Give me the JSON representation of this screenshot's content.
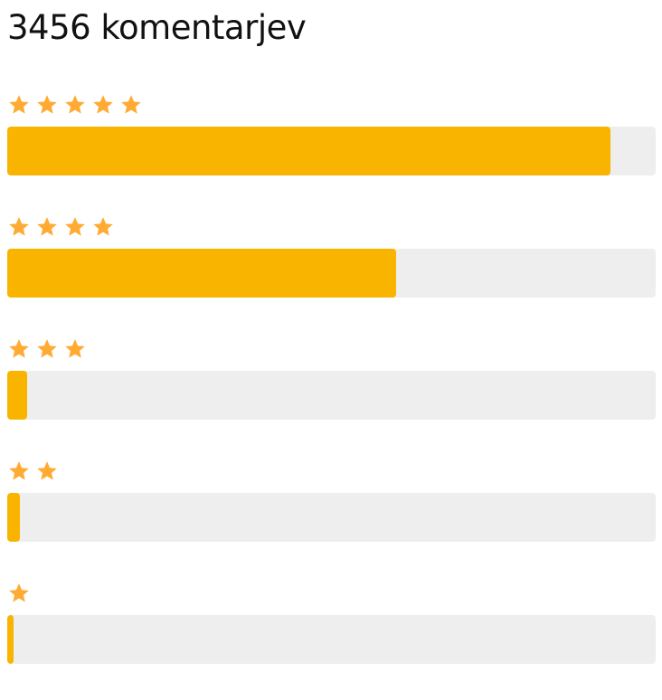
{
  "header": {
    "title": "3456 komentarjev"
  },
  "colors": {
    "star": "#FFAB33",
    "bar_fill": "#F9B400",
    "bar_track": "#EEEEEE"
  },
  "ratings": [
    {
      "stars": 5,
      "fraction": 0.93
    },
    {
      "stars": 4,
      "fraction": 0.6
    },
    {
      "stars": 3,
      "fraction": 0.03
    },
    {
      "stars": 2,
      "fraction": 0.02
    },
    {
      "stars": 1,
      "fraction": 0.01
    }
  ]
}
